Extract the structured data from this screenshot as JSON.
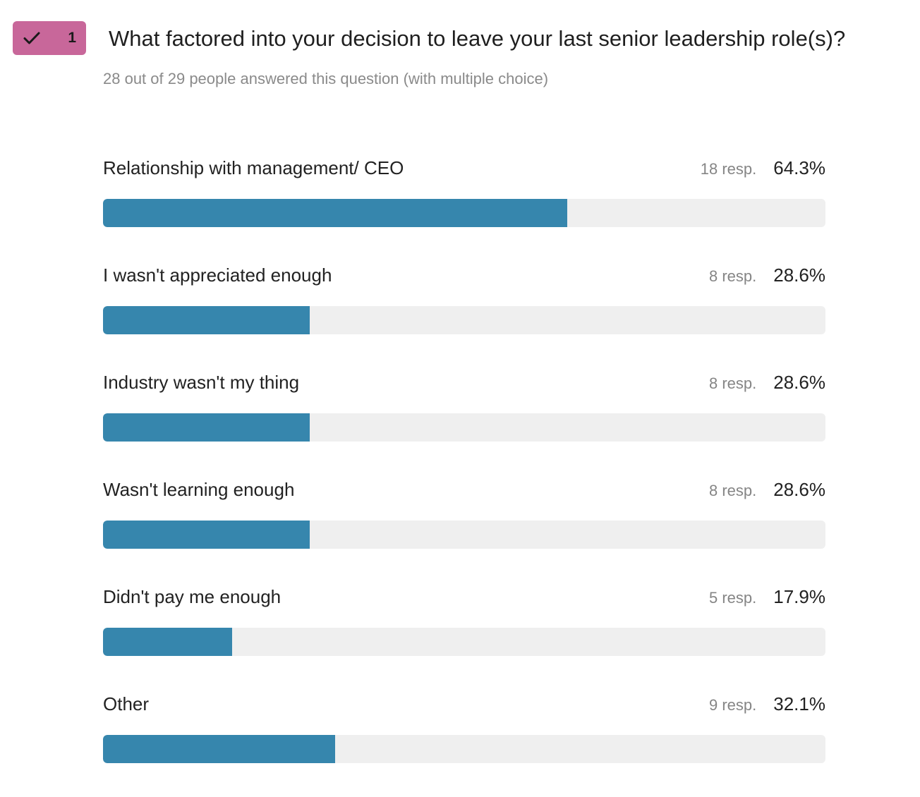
{
  "colors": {
    "badge": "#c8679a",
    "bar_fill": "#3686ad",
    "bar_track": "#efefef"
  },
  "badge": {
    "icon": "checkmark-icon",
    "number": "1"
  },
  "question": {
    "title": "What factored into your decision to leave your last senior leadership role(s)?",
    "subtitle": "28 out of 29 people answered this question (with multiple choice)"
  },
  "chart_data": {
    "type": "bar",
    "orientation": "horizontal",
    "xlim": [
      0,
      100
    ],
    "categories": [
      "Relationship with management/ CEO",
      "I wasn't appreciated enough",
      "Industry wasn't my thing",
      "Wasn't learning enough",
      "Didn't pay me enough",
      "Other"
    ],
    "values": [
      64.3,
      28.6,
      28.6,
      28.6,
      17.9,
      32.1
    ],
    "rows": [
      {
        "label": "Relationship with management/ CEO",
        "count_text": "18 resp.",
        "percent_text": "64.3%",
        "percent": 64.3
      },
      {
        "label": "I wasn't appreciated enough",
        "count_text": "8 resp.",
        "percent_text": "28.6%",
        "percent": 28.6
      },
      {
        "label": "Industry wasn't my thing",
        "count_text": "8 resp.",
        "percent_text": "28.6%",
        "percent": 28.6
      },
      {
        "label": "Wasn't learning enough",
        "count_text": "8 resp.",
        "percent_text": "28.6%",
        "percent": 28.6
      },
      {
        "label": "Didn't pay me enough",
        "count_text": "5 resp.",
        "percent_text": "17.9%",
        "percent": 17.9
      },
      {
        "label": "Other",
        "count_text": "9 resp.",
        "percent_text": "32.1%",
        "percent": 32.1
      }
    ]
  }
}
